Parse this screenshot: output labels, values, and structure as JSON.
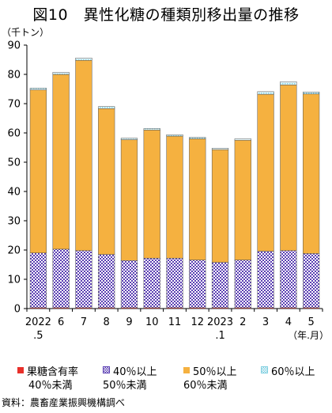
{
  "title": "図10　異性化糖の種類別移出量の推移",
  "unit_label": "（千トン）",
  "source": "資料：農畜産業振興機構調べ",
  "chart_data": {
    "type": "bar",
    "stacked": true,
    "categories": [
      [
        "2022",
        ".5"
      ],
      [
        "6"
      ],
      [
        "7"
      ],
      [
        "8"
      ],
      [
        "9"
      ],
      [
        "10"
      ],
      [
        "11"
      ],
      [
        "12"
      ],
      [
        "2023",
        ".1"
      ],
      [
        "2"
      ],
      [
        "3"
      ],
      [
        "4"
      ],
      [
        "5"
      ]
    ],
    "x_suffix": "（年.月）",
    "ylim": [
      0,
      90
    ],
    "yticks": [
      0,
      10,
      20,
      30,
      40,
      50,
      60,
      70,
      80,
      90
    ],
    "grid": false,
    "legend_position": "bottom",
    "series": [
      {
        "name": [
          "果糖含有率",
          "40％未満"
        ],
        "color": "#e8302a",
        "pattern": "solid",
        "values": [
          0.3,
          0.3,
          0.3,
          0.3,
          0.3,
          0.3,
          0.3,
          0.3,
          0.3,
          0.3,
          0.3,
          0.3,
          0.3
        ]
      },
      {
        "name": [
          "40％以上",
          "50％未満"
        ],
        "color": "#5b3fb3",
        "pattern": "check",
        "values": [
          18.7,
          20.0,
          19.5,
          18.2,
          16.1,
          16.9,
          16.9,
          16.3,
          15.5,
          16.3,
          19.3,
          19.5,
          18.5
        ]
      },
      {
        "name": [
          "50％以上",
          "60％未満"
        ],
        "color": "#f5b140",
        "pattern": "solid",
        "values": [
          55.7,
          59.7,
          65.0,
          49.8,
          41.3,
          43.8,
          41.7,
          41.4,
          38.5,
          40.9,
          53.6,
          56.6,
          54.5
        ]
      },
      {
        "name": [
          "60％以上",
          ""
        ],
        "color": "#bfe8f0",
        "pattern": "dots",
        "values": [
          0.6,
          0.7,
          0.8,
          0.7,
          0.5,
          0.5,
          0.5,
          0.5,
          0.5,
          0.5,
          0.9,
          1.1,
          0.7
        ]
      }
    ]
  }
}
